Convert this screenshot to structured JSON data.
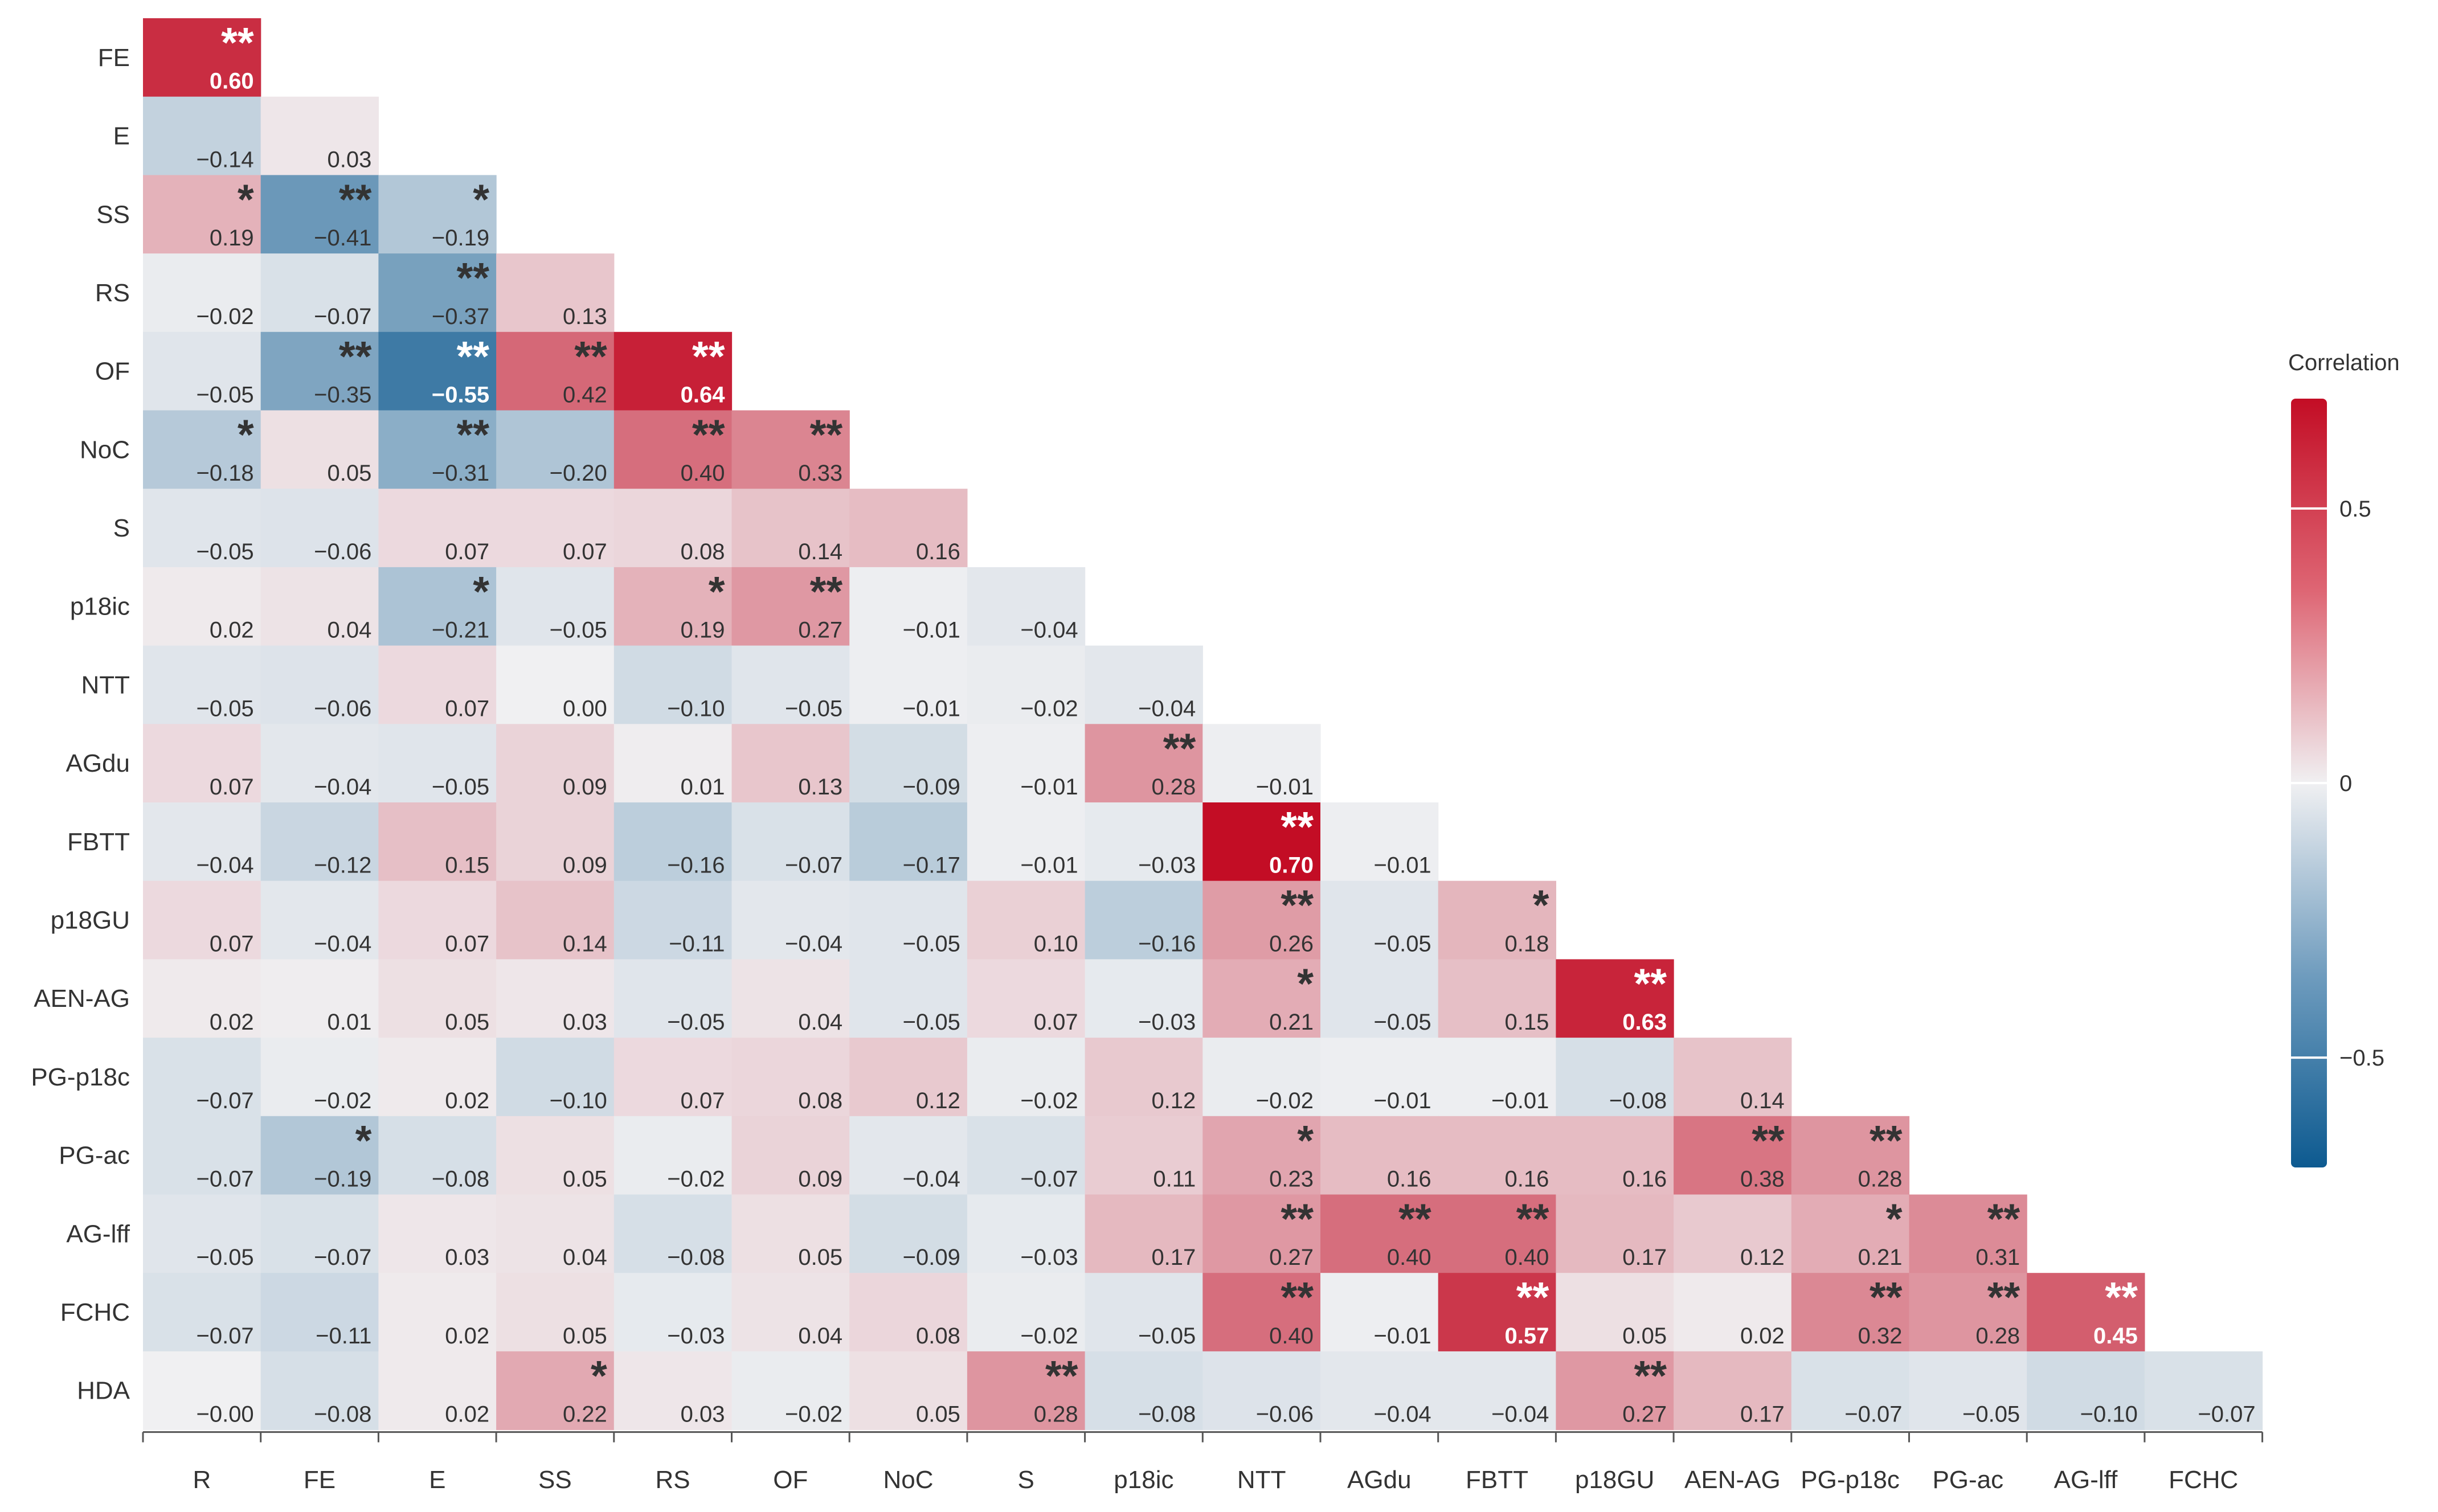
{
  "chart_data": {
    "type": "heatmap",
    "row_labels": [
      "FE",
      "E",
      "SS",
      "RS",
      "OF",
      "NoC",
      "S",
      "p18ic",
      "NTT",
      "AGdu",
      "FBTT",
      "p18GU",
      "AEN-AG",
      "PG-p18c",
      "PG-ac",
      "AG-lff",
      "FCHC",
      "HDA"
    ],
    "col_labels": [
      "R",
      "FE",
      "E",
      "SS",
      "RS",
      "OF",
      "NoC",
      "S",
      "p18ic",
      "NTT",
      "AGdu",
      "FBTT",
      "p18GU",
      "AEN-AG",
      "PG-p18c",
      "PG-ac",
      "AG-lff",
      "FCHC"
    ],
    "values": [
      [
        "0.60"
      ],
      [
        "−0.14",
        "0.03"
      ],
      [
        "0.19",
        "−0.41",
        "−0.19"
      ],
      [
        "−0.02",
        "−0.07",
        "−0.37",
        "0.13"
      ],
      [
        "−0.05",
        "−0.35",
        "−0.55",
        "0.42",
        "0.64"
      ],
      [
        "−0.18",
        "0.05",
        "−0.31",
        "−0.20",
        "0.40",
        "0.33"
      ],
      [
        "−0.05",
        "−0.06",
        "0.07",
        "0.07",
        "0.08",
        "0.14",
        "0.16"
      ],
      [
        "0.02",
        "0.04",
        "−0.21",
        "−0.05",
        "0.19",
        "0.27",
        "−0.01",
        "−0.04"
      ],
      [
        "−0.05",
        "−0.06",
        "0.07",
        "0.00",
        "−0.10",
        "−0.05",
        "−0.01",
        "−0.02",
        "−0.04"
      ],
      [
        "0.07",
        "−0.04",
        "−0.05",
        "0.09",
        "0.01",
        "0.13",
        "−0.09",
        "−0.01",
        "0.28",
        "−0.01"
      ],
      [
        "−0.04",
        "−0.12",
        "0.15",
        "0.09",
        "−0.16",
        "−0.07",
        "−0.17",
        "−0.01",
        "−0.03",
        "0.70",
        "−0.01"
      ],
      [
        "0.07",
        "−0.04",
        "0.07",
        "0.14",
        "−0.11",
        "−0.04",
        "−0.05",
        "0.10",
        "−0.16",
        "0.26",
        "−0.05",
        "0.18"
      ],
      [
        "0.02",
        "0.01",
        "0.05",
        "0.03",
        "−0.05",
        "0.04",
        "−0.05",
        "0.07",
        "−0.03",
        "0.21",
        "−0.05",
        "0.15",
        "0.63"
      ],
      [
        "−0.07",
        "−0.02",
        "0.02",
        "−0.10",
        "0.07",
        "0.08",
        "0.12",
        "−0.02",
        "0.12",
        "−0.02",
        "−0.01",
        "−0.01",
        "−0.08",
        "0.14"
      ],
      [
        "−0.07",
        "−0.19",
        "−0.08",
        "0.05",
        "−0.02",
        "0.09",
        "−0.04",
        "−0.07",
        "0.11",
        "0.23",
        "0.16",
        "0.16",
        "0.16",
        "0.38",
        "0.28"
      ],
      [
        "−0.05",
        "−0.07",
        "0.03",
        "0.04",
        "−0.08",
        "0.05",
        "−0.09",
        "−0.03",
        "0.17",
        "0.27",
        "0.40",
        "0.40",
        "0.17",
        "0.12",
        "0.21",
        "0.31"
      ],
      [
        "−0.07",
        "−0.11",
        "0.02",
        "0.05",
        "−0.03",
        "0.04",
        "0.08",
        "−0.02",
        "−0.05",
        "0.40",
        "−0.01",
        "0.57",
        "0.05",
        "0.02",
        "0.32",
        "0.28",
        "0.45"
      ],
      [
        "−0.00",
        "−0.08",
        "0.02",
        "0.22",
        "0.03",
        "−0.02",
        "0.05",
        "0.28",
        "−0.08",
        "−0.06",
        "−0.04",
        "−0.04",
        "0.27",
        "0.17",
        "−0.07",
        "−0.05",
        "−0.10",
        "−0.07"
      ]
    ],
    "significance": [
      [
        "**"
      ],
      [
        "",
        ""
      ],
      [
        "*",
        "**",
        "*"
      ],
      [
        "",
        "",
        "**",
        ""
      ],
      [
        "",
        "**",
        "**",
        "**",
        "**"
      ],
      [
        "*",
        "",
        "**",
        "",
        "**",
        "**"
      ],
      [
        "",
        "",
        "",
        "",
        "",
        "",
        ""
      ],
      [
        "",
        "",
        "*",
        "",
        "*",
        "**",
        "",
        ""
      ],
      [
        "",
        "",
        "",
        "",
        "",
        "",
        "",
        "",
        ""
      ],
      [
        "",
        "",
        "",
        "",
        "",
        "",
        "",
        "",
        "**",
        ""
      ],
      [
        "",
        "",
        "",
        "",
        "",
        "",
        "",
        "",
        "",
        "**",
        ""
      ],
      [
        "",
        "",
        "",
        "",
        "",
        "",
        "",
        "",
        "",
        "**",
        "",
        "*"
      ],
      [
        "",
        "",
        "",
        "",
        "",
        "",
        "",
        "",
        "",
        "*",
        "",
        "",
        "**"
      ],
      [
        "",
        "",
        "",
        "",
        "",
        "",
        "",
        "",
        "",
        "",
        "",
        "",
        "",
        ""
      ],
      [
        "",
        "*",
        "",
        "",
        "",
        "",
        "",
        "",
        "",
        "*",
        "",
        "",
        "",
        "**",
        "**"
      ],
      [
        "",
        "",
        "",
        "",
        "",
        "",
        "",
        "",
        "",
        "**",
        "**",
        "**",
        "",
        "",
        "*",
        "**"
      ],
      [
        "",
        "",
        "",
        "",
        "",
        "",
        "",
        "",
        "",
        "**",
        "",
        "**",
        "",
        "",
        "**",
        "**",
        "**"
      ],
      [
        "",
        "",
        "",
        "*",
        "",
        "",
        "",
        "**",
        "",
        "",
        "",
        "",
        "**",
        "",
        "",
        "",
        "",
        ""
      ]
    ],
    "colorbar": {
      "title": "Correlation",
      "range": [
        -0.7,
        0.7
      ],
      "ticks": [
        0.5,
        0,
        -0.5
      ],
      "tick_labels": [
        "0.5",
        "0",
        "−0.5"
      ]
    },
    "colors": {
      "negative_max": "#0d5a90",
      "neutral": "#f0f0f2",
      "positive_max": "#c30d25",
      "dark_text": "#333333",
      "light_text": "#ffffff"
    }
  }
}
